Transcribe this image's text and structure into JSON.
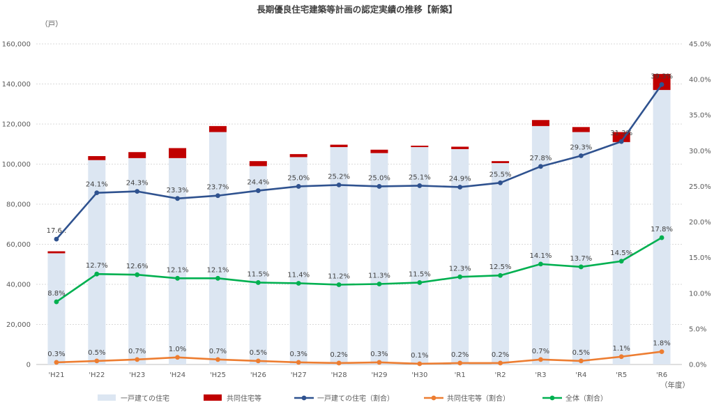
{
  "chart_data": {
    "type": "bar",
    "title": "長期優良住宅建築等計画の認定実績の推移【新築】",
    "y_left_unit": "（戸）",
    "x_unit": "（年度）",
    "categories": [
      "'H21",
      "'H22",
      "'H23",
      "'H24",
      "'H25",
      "'H26",
      "'H27",
      "'H28",
      "'H29",
      "'H30",
      "'R1",
      "'R2",
      "'R3",
      "'R4",
      "'R5",
      "'R6"
    ],
    "y_left_ticks": [
      "0",
      "20,000",
      "40,000",
      "60,000",
      "80,000",
      "100,000",
      "120,000",
      "140,000",
      "160,000"
    ],
    "y_left_range": [
      0,
      160000
    ],
    "y_right_ticks": [
      "0.0%",
      "5.0%",
      "10.0%",
      "15.0%",
      "20.0%",
      "25.0%",
      "30.0%",
      "35.0%",
      "40.0%",
      "45.0%"
    ],
    "y_right_range": [
      0,
      45
    ],
    "gridlines": true,
    "legend_position": "bottom",
    "colors": {
      "detached_bar": "#dce6f2",
      "multi_bar": "#c00000",
      "detached_line": "#2f528f",
      "multi_line": "#ed7d31",
      "total_line": "#00b050"
    },
    "bar_series": [
      {
        "name": "一戸建ての住宅",
        "values": [
          55500,
          102000,
          103000,
          103000,
          116000,
          99000,
          103500,
          108500,
          105500,
          108500,
          107500,
          100500,
          119000,
          116000,
          111000,
          137000
        ]
      },
      {
        "name": "共同住宅等",
        "values": [
          1000,
          2000,
          3000,
          5000,
          3000,
          2500,
          1500,
          1200,
          1700,
          700,
          1200,
          1000,
          3000,
          2500,
          5000,
          8000
        ]
      }
    ],
    "line_series": [
      {
        "name": "一戸建ての住宅（割合）",
        "values": [
          17.6,
          24.1,
          24.3,
          23.3,
          23.7,
          24.4,
          25.0,
          25.2,
          25.0,
          25.1,
          24.9,
          25.5,
          27.8,
          29.3,
          31.3,
          39.3
        ],
        "labels": [
          "17.6..",
          "24.1%",
          "24.3%",
          "23.3%",
          "23.7%",
          "24.4%",
          "25.0%",
          "25.2%",
          "25.0%",
          "25.1%",
          "24.9%",
          "25.5%",
          "27.8%",
          "29.3%",
          "31.3%",
          "39.3%"
        ]
      },
      {
        "name": "共同住宅等（割合）",
        "values": [
          0.3,
          0.5,
          0.7,
          1.0,
          0.7,
          0.5,
          0.3,
          0.2,
          0.3,
          0.1,
          0.2,
          0.2,
          0.7,
          0.5,
          1.1,
          1.8
        ],
        "labels": [
          "0.3%",
          "0.5%",
          "0.7%",
          "1.0%",
          "0.7%",
          "0.5%",
          "0.3%",
          "0.2%",
          "0.3%",
          "0.1%",
          "0.2%",
          "0.2%",
          "0.7%",
          "0.5%",
          "1.1%",
          "1.8%"
        ]
      },
      {
        "name": "全体（割合）",
        "values": [
          8.8,
          12.7,
          12.6,
          12.1,
          12.1,
          11.5,
          11.4,
          11.2,
          11.3,
          11.5,
          12.3,
          12.5,
          14.1,
          13.7,
          14.5,
          17.8
        ],
        "labels": [
          "8.8%",
          "12.7%",
          "12.6%",
          "12.1%",
          "12.1%",
          "11.5%",
          "11.4%",
          "11.2%",
          "11.3%",
          "11.5%",
          "12.3%",
          "12.5%",
          "14.1%",
          "13.7%",
          "14.5%",
          "17.8%"
        ]
      }
    ]
  }
}
